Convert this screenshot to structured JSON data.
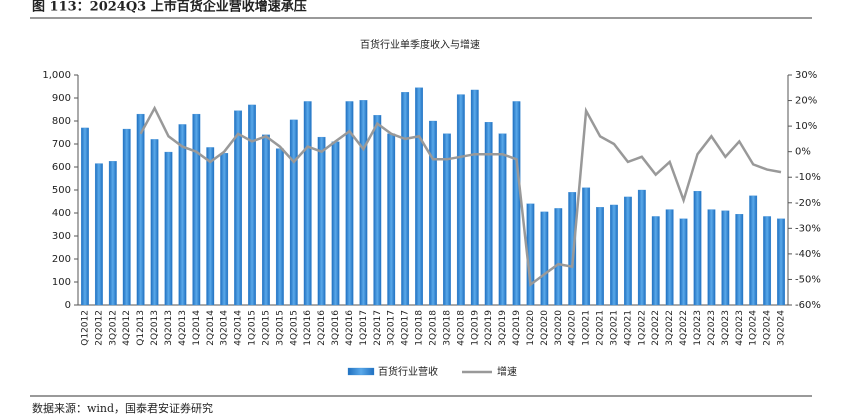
{
  "header": {
    "title": "图 113：2024Q3 上市百货企业营收增速承压"
  },
  "source": "数据来源：wind，国泰君安证券研究",
  "chart_data": {
    "type": "bar-line",
    "title": "百货行业单季度收入与增速",
    "categories": [
      "Q12012",
      "2Q2012",
      "3Q2012",
      "4Q2012",
      "Q12013",
      "2Q2013",
      "3Q2013",
      "4Q2013",
      "1Q2014",
      "2Q2014",
      "3Q2014",
      "4Q2014",
      "1Q2015",
      "2Q2015",
      "3Q2015",
      "4Q2015",
      "1Q2016",
      "2Q2016",
      "3Q2016",
      "4Q2016",
      "1Q2017",
      "2Q2017",
      "3Q2017",
      "4Q2017",
      "1Q2018",
      "2Q2018",
      "3Q2018",
      "4Q2018",
      "1Q2019",
      "2Q2019",
      "3Q2019",
      "4Q2019",
      "1Q2020",
      "2Q2020",
      "3Q2020",
      "4Q2020",
      "1Q2021",
      "2Q2021",
      "3Q2021",
      "4Q2021",
      "1Q2022",
      "2Q2022",
      "3Q2022",
      "4Q2022",
      "1Q2023",
      "2Q2023",
      "3Q2023",
      "4Q2023",
      "1Q2024",
      "2Q2024",
      "3Q2024"
    ],
    "series": [
      {
        "name": "百货行业营收",
        "color": "#3a8ad4",
        "axis": "y",
        "values": [
          770,
          615,
          625,
          765,
          830,
          720,
          665,
          785,
          830,
          685,
          660,
          845,
          870,
          740,
          680,
          805,
          885,
          730,
          710,
          885,
          890,
          825,
          745,
          925,
          945,
          800,
          745,
          915,
          935,
          795,
          745,
          885,
          440,
          405,
          420,
          490,
          510,
          425,
          435,
          470,
          500,
          385,
          415,
          375,
          495,
          415,
          410,
          395,
          475,
          385,
          375
        ]
      },
      {
        "name": "增速",
        "color": "#999999",
        "axis": "y2",
        "values": [
          null,
          null,
          null,
          null,
          7,
          17,
          6,
          2,
          0,
          -4,
          0,
          7,
          4,
          6,
          2,
          -4,
          2,
          0,
          4,
          8,
          1,
          11,
          7,
          5,
          6,
          -3,
          -3,
          -2,
          -1,
          -1,
          -1,
          -3,
          -52,
          -48,
          -44,
          -45,
          16,
          6,
          3,
          -4,
          -2,
          -9,
          -4,
          -19,
          -1,
          6,
          -2,
          4,
          -5,
          -7,
          -8
        ]
      }
    ],
    "ylim": [
      0,
      1000
    ],
    "yticks": [
      0,
      100,
      200,
      300,
      400,
      500,
      600,
      700,
      800,
      900,
      {
        "value": 1000,
        "label": "1,000"
      }
    ],
    "y2lim": [
      -60,
      30
    ],
    "y2ticks": [
      {
        "value": -60,
        "label": "-60%"
      },
      {
        "value": -50,
        "label": "-50%"
      },
      {
        "value": -40,
        "label": "-40%"
      },
      {
        "value": -30,
        "label": "-30%"
      },
      {
        "value": -20,
        "label": "-20%"
      },
      {
        "value": -10,
        "label": "-10%"
      },
      {
        "value": 0,
        "label": "0%"
      },
      {
        "value": 10,
        "label": "10%"
      },
      {
        "value": 20,
        "label": "20%"
      },
      {
        "value": 30,
        "label": "30%"
      }
    ],
    "grid": false
  }
}
